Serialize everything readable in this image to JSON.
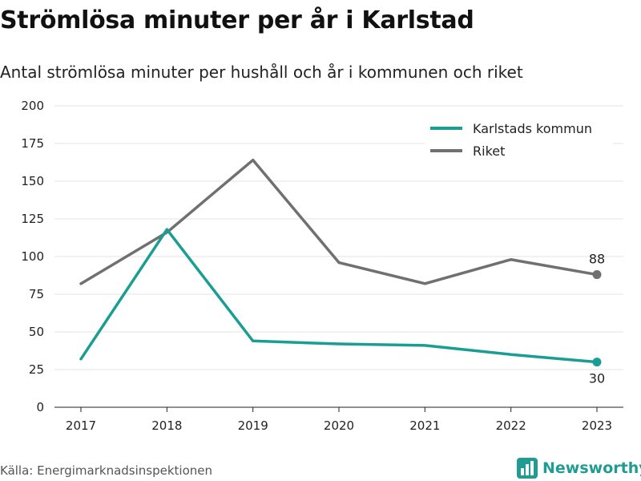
{
  "colors": {
    "kommun": "#1a9e94",
    "riket": "#707070",
    "grid": "#e3e3e3",
    "brand": "#1f9c93"
  },
  "brand": {
    "name": "Newsworthy",
    "icon": "bar-chart-logo-icon"
  },
  "source": "Källa: Energimarknadsinspektionen",
  "chart_data": {
    "type": "line",
    "title": "Strömlösa minuter per år i Karlstad",
    "subtitle": "Antal strömlösa minuter per hushåll och år i kommunen och riket",
    "xlabel": "",
    "ylabel": "",
    "categories": [
      "2017",
      "2018",
      "2019",
      "2020",
      "2021",
      "2022",
      "2023"
    ],
    "ylim": [
      0,
      200
    ],
    "yticks": [
      0,
      25,
      50,
      75,
      100,
      125,
      150,
      175,
      200
    ],
    "grid": true,
    "legend_position": "top-right",
    "series": [
      {
        "name": "Karlstads kommun",
        "values": [
          32,
          118,
          44,
          42,
          41,
          35,
          30
        ],
        "end_label": "30"
      },
      {
        "name": "Riket",
        "values": [
          82,
          116,
          164,
          96,
          82,
          98,
          88
        ],
        "end_label": "88"
      }
    ]
  }
}
